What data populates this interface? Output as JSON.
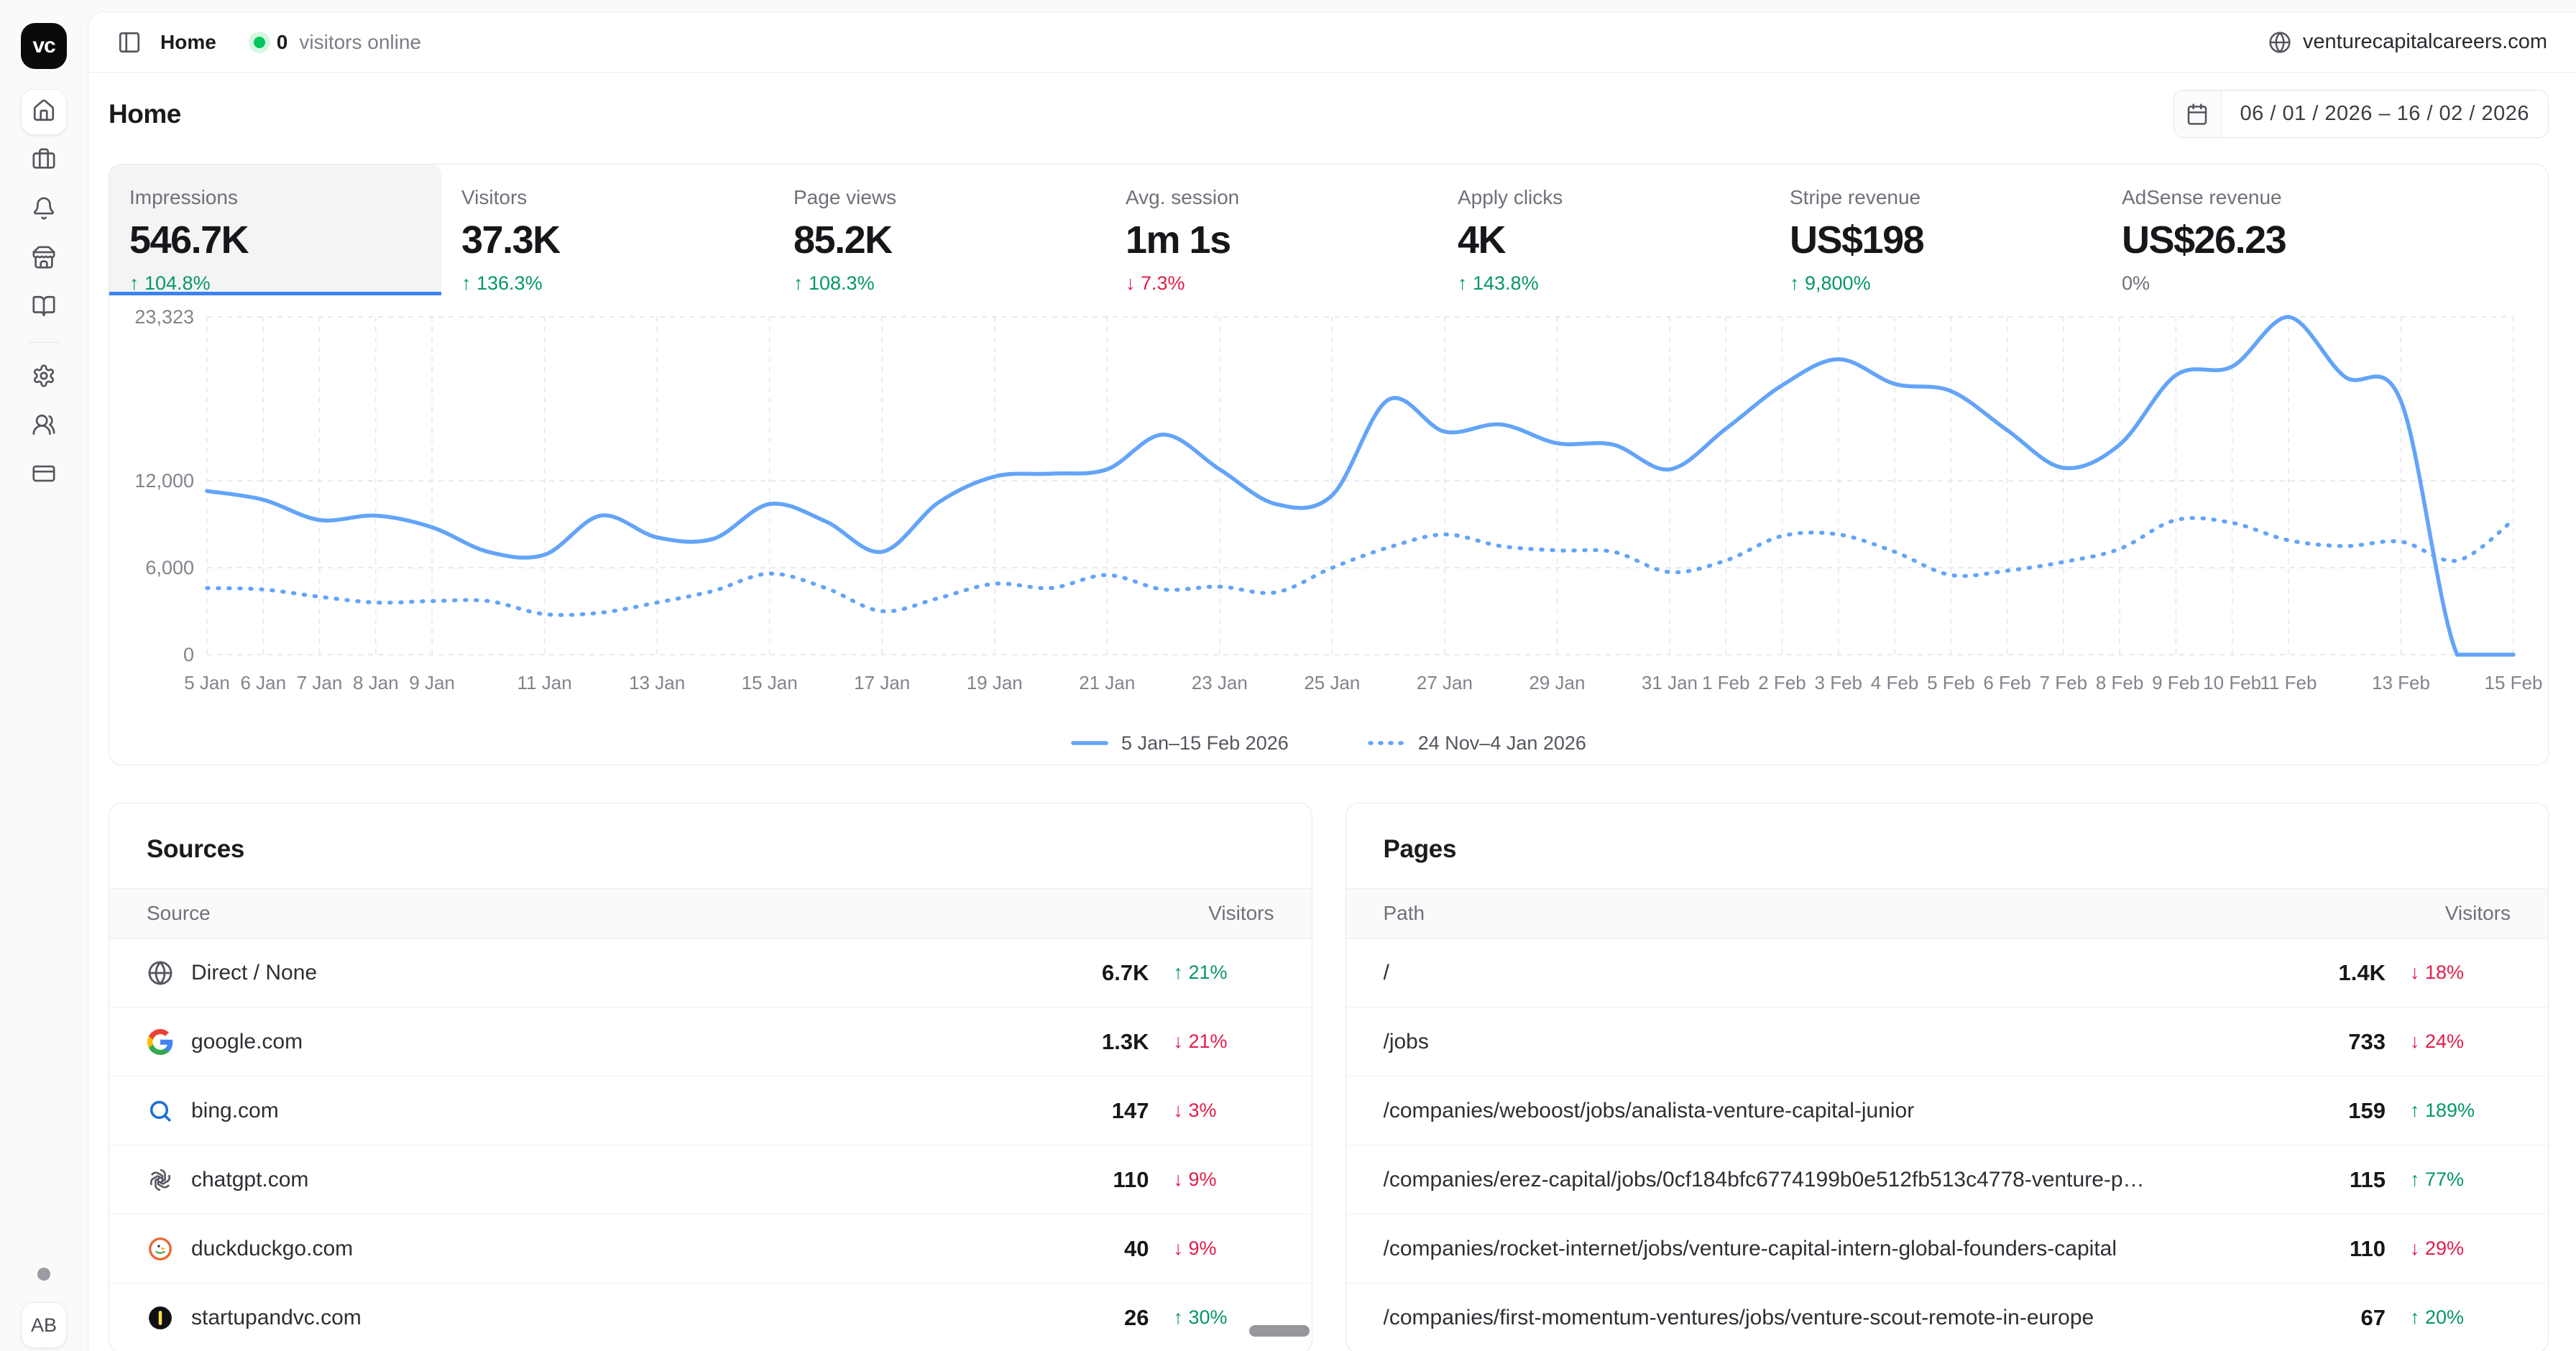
{
  "colors": {
    "accent": "#3b82f6",
    "line": "#63a4f8",
    "up_green": "#059669",
    "down_red": "#e11d48",
    "online_green": "#00c75a"
  },
  "sidebar": {
    "logo_text": "vc",
    "items": [
      {
        "icon": "house",
        "active": true
      },
      {
        "icon": "briefcase",
        "active": false
      },
      {
        "icon": "bell",
        "active": false
      },
      {
        "icon": "store",
        "active": false
      },
      {
        "icon": "book-open",
        "active": false
      },
      {
        "icon": "divider",
        "active": false
      },
      {
        "icon": "settings",
        "active": false
      },
      {
        "icon": "users",
        "active": false
      },
      {
        "icon": "credit-card",
        "active": false
      }
    ],
    "avatar_initials": "AB"
  },
  "topbar": {
    "breadcrumb": "Home",
    "online_count": "0",
    "online_label": "visitors online",
    "domain": "venturecapitalcareers.com"
  },
  "header": {
    "title": "Home",
    "date_range": "06 / 01 / 2026 – 16 / 02 / 2026"
  },
  "stats": [
    {
      "label": "Impressions",
      "value": "546.7K",
      "delta": "104.8%",
      "dir": "up",
      "active": true
    },
    {
      "label": "Visitors",
      "value": "37.3K",
      "delta": "136.3%",
      "dir": "up",
      "active": false
    },
    {
      "label": "Page views",
      "value": "85.2K",
      "delta": "108.3%",
      "dir": "up",
      "active": false
    },
    {
      "label": "Avg. session",
      "value": "1m 1s",
      "delta": "7.3%",
      "dir": "down",
      "active": false
    },
    {
      "label": "Apply clicks",
      "value": "4K",
      "delta": "143.8%",
      "dir": "up",
      "active": false
    },
    {
      "label": "Stripe revenue",
      "value": "US$198",
      "delta": "9,800%",
      "dir": "up",
      "active": false
    },
    {
      "label": "AdSense revenue",
      "value": "US$26.23",
      "delta": "0%",
      "dir": "flat",
      "active": false
    }
  ],
  "chart_data": {
    "type": "line",
    "metric": "Impressions",
    "ylim": [
      0,
      23323
    ],
    "grid": "dashed",
    "legend_position": "bottom",
    "yticks": [
      {
        "v": 0,
        "label": "0"
      },
      {
        "v": 6000,
        "label": "6,000"
      },
      {
        "v": 12000,
        "label": "12,000"
      },
      {
        "v": 23323,
        "label": "23,323"
      }
    ],
    "x_days": 42,
    "xticks": [
      {
        "i": 0,
        "label": "5 Jan"
      },
      {
        "i": 1,
        "label": "6 Jan"
      },
      {
        "i": 2,
        "label": "7 Jan"
      },
      {
        "i": 3,
        "label": "8 Jan"
      },
      {
        "i": 4,
        "label": "9 Jan"
      },
      {
        "i": 6,
        "label": "11 Jan"
      },
      {
        "i": 8,
        "label": "13 Jan"
      },
      {
        "i": 10,
        "label": "15 Jan"
      },
      {
        "i": 12,
        "label": "17 Jan"
      },
      {
        "i": 14,
        "label": "19 Jan"
      },
      {
        "i": 16,
        "label": "21 Jan"
      },
      {
        "i": 18,
        "label": "23 Jan"
      },
      {
        "i": 20,
        "label": "25 Jan"
      },
      {
        "i": 22,
        "label": "27 Jan"
      },
      {
        "i": 24,
        "label": "29 Jan"
      },
      {
        "i": 26,
        "label": "31 Jan"
      },
      {
        "i": 27,
        "label": "1 Feb"
      },
      {
        "i": 28,
        "label": "2 Feb"
      },
      {
        "i": 29,
        "label": "3 Feb"
      },
      {
        "i": 30,
        "label": "4 Feb"
      },
      {
        "i": 31,
        "label": "5 Feb"
      },
      {
        "i": 32,
        "label": "6 Feb"
      },
      {
        "i": 33,
        "label": "7 Feb"
      },
      {
        "i": 34,
        "label": "8 Feb"
      },
      {
        "i": 35,
        "label": "9 Feb"
      },
      {
        "i": 36,
        "label": "10 Feb"
      },
      {
        "i": 37,
        "label": "11 Feb"
      },
      {
        "i": 39,
        "label": "13 Feb"
      },
      {
        "i": 41,
        "label": "15 Feb"
      }
    ],
    "series": [
      {
        "name": "5 Jan–15 Feb 2026",
        "style": "solid",
        "values": [
          11300,
          10700,
          9300,
          9600,
          8800,
          7100,
          6900,
          9600,
          8100,
          8000,
          10400,
          9200,
          7100,
          10500,
          12300,
          12500,
          12800,
          15200,
          12800,
          10400,
          11000,
          17600,
          15400,
          15900,
          14600,
          14500,
          12800,
          15600,
          18600,
          20400,
          18700,
          18200,
          15500,
          12900,
          14500,
          19300,
          19900,
          23323,
          19200,
          17500,
          0,
          0
        ]
      },
      {
        "name": "24 Nov–4 Jan 2026",
        "style": "dashed",
        "values": [
          4600,
          4500,
          4000,
          3600,
          3700,
          3700,
          2800,
          2900,
          3600,
          4400,
          5600,
          4600,
          3000,
          3900,
          4900,
          4600,
          5500,
          4500,
          4700,
          4300,
          6000,
          7400,
          8300,
          7500,
          7200,
          7100,
          5700,
          6500,
          8200,
          8300,
          7100,
          5500,
          5800,
          6400,
          7300,
          9300,
          9100,
          7900,
          7500,
          7800,
          6500,
          9300
        ]
      }
    ]
  },
  "sources": {
    "title": "Sources",
    "columns": [
      "Source",
      "Visitors"
    ],
    "rows": [
      {
        "icon": "globe",
        "label": "Direct / None",
        "value": "6.7K",
        "delta": "21%",
        "dir": "up"
      },
      {
        "icon": "google",
        "label": "google.com",
        "value": "1.3K",
        "delta": "21%",
        "dir": "down"
      },
      {
        "icon": "search",
        "label": "bing.com",
        "value": "147",
        "delta": "3%",
        "dir": "down"
      },
      {
        "icon": "openai",
        "label": "chatgpt.com",
        "value": "110",
        "delta": "9%",
        "dir": "down"
      },
      {
        "icon": "duckduckgo",
        "label": "duckduckgo.com",
        "value": "40",
        "delta": "9%",
        "dir": "down"
      },
      {
        "icon": "startupandvc",
        "label": "startupandvc.com",
        "value": "26",
        "delta": "30%",
        "dir": "up"
      }
    ]
  },
  "pages": {
    "title": "Pages",
    "columns": [
      "Path",
      "Visitors"
    ],
    "rows": [
      {
        "label": "/",
        "value": "1.4K",
        "delta": "18%",
        "dir": "down"
      },
      {
        "label": "/jobs",
        "value": "733",
        "delta": "24%",
        "dir": "down"
      },
      {
        "label": "/companies/weboost/jobs/analista-venture-capital-junior",
        "value": "159",
        "delta": "189%",
        "dir": "up"
      },
      {
        "label": "/companies/erez-capital/jobs/0cf184bfc6774199b0e512fb513c4778-venture-p…",
        "value": "115",
        "delta": "77%",
        "dir": "up"
      },
      {
        "label": "/companies/rocket-internet/jobs/venture-capital-intern-global-founders-capital",
        "value": "110",
        "delta": "29%",
        "dir": "down"
      },
      {
        "label": "/companies/first-momentum-ventures/jobs/venture-scout-remote-in-europe",
        "value": "67",
        "delta": "20%",
        "dir": "up"
      }
    ]
  }
}
